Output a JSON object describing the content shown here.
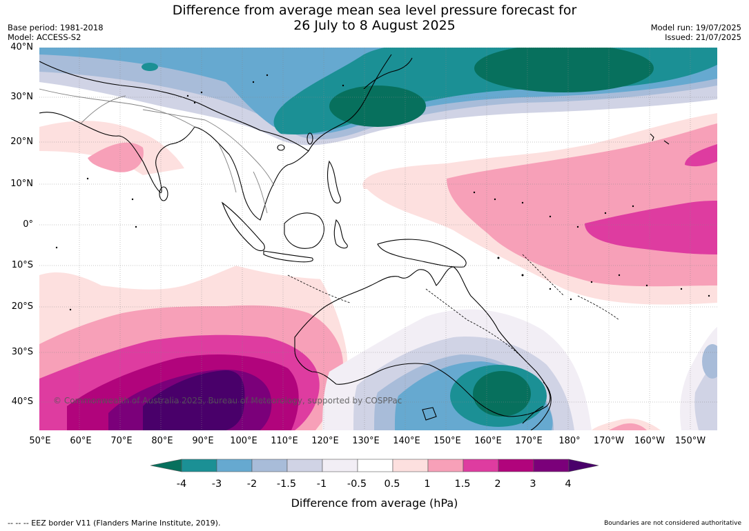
{
  "title": {
    "line1": "Difference from average mean sea level pressure forecast for",
    "line2": "26 July to 8 August 2025"
  },
  "meta": {
    "base_period": "Base period: 1981-2018",
    "model": "Model: ACCESS-S2",
    "model_run": "Model run: 19/07/2025",
    "issued": "Issued: 21/07/2025"
  },
  "map": {
    "region": "Indian Ocean, Maritime Continent, Australia and Western Pacific",
    "copyright": "© Commonwealth of Australia 2025, Bureau of Meteorology, supported by COSPPac",
    "lat_labels": [
      "40°N",
      "30°N",
      "20°N",
      "10°N",
      "0°",
      "10°S",
      "20°S",
      "30°S",
      "40°S"
    ],
    "lon_labels": [
      "50°E",
      "60°E",
      "70°E",
      "80°E",
      "90°E",
      "100°E",
      "110°E",
      "120°E",
      "130°E",
      "140°E",
      "150°E",
      "160°E",
      "170°E",
      "180°",
      "170°W",
      "160°W",
      "150°W"
    ]
  },
  "colorbar": {
    "title": "Difference from average (hPa)",
    "tick_labels": [
      "-4",
      "-3",
      "-2",
      "-1.5",
      "-1",
      "-0.5",
      "0.5",
      "1",
      "1.5",
      "2",
      "3",
      "4"
    ],
    "colors": [
      "#1b9095",
      "#66a9d0",
      "#a8bcd9",
      "#d0d3e5",
      "#f2eef5",
      "#ffffff",
      "#fde0df",
      "#f7a0b8",
      "#de3ca0",
      "#b1047c",
      "#7b007a"
    ],
    "under_color": "#07705d",
    "over_color": "#49006a"
  },
  "footer": {
    "left": "--  --  -- EEZ border V11 (Flanders Marine Institute, 2019).",
    "right": "Boundaries are not considered authoritative"
  }
}
